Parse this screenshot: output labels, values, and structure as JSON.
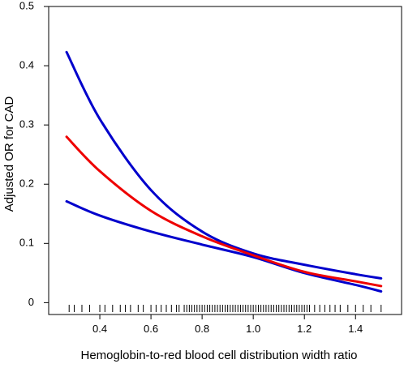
{
  "chart_data": {
    "type": "line",
    "xlabel": "Hemoglobin-to-red blood cell distribution width ratio",
    "ylabel": "Adjusted OR for CAD",
    "xlim": [
      0.2,
      1.58
    ],
    "ylim": [
      -0.02,
      0.5
    ],
    "x_ticks": [
      0.4,
      0.6,
      0.8,
      1.0,
      1.2,
      1.4
    ],
    "x_tick_labels": [
      "0.4",
      "0.6",
      "0.8",
      "1.0",
      "1.2",
      "1.4"
    ],
    "y_ticks": [
      0,
      0.1,
      0.2,
      0.3,
      0.4,
      0.5
    ],
    "y_tick_labels": [
      "0",
      "0.1",
      "0.2",
      "0.3",
      "0.4",
      "0.5"
    ],
    "grid": false,
    "colors": {
      "estimate": "#ee0000",
      "ci": "#0000cc",
      "axis": "#000000"
    },
    "series": [
      {
        "role": "estimate",
        "x": [
          0.27,
          0.4,
          0.6,
          0.8,
          1.0,
          1.2,
          1.4,
          1.5
        ],
        "y": [
          0.28,
          0.222,
          0.155,
          0.112,
          0.08,
          0.052,
          0.036,
          0.028
        ]
      },
      {
        "role": "ci_upper",
        "x": [
          0.27,
          0.4,
          0.6,
          0.8,
          1.0,
          1.2,
          1.4,
          1.5
        ],
        "y": [
          0.423,
          0.31,
          0.19,
          0.12,
          0.083,
          0.064,
          0.048,
          0.041
        ]
      },
      {
        "role": "ci_lower",
        "x": [
          0.27,
          0.4,
          0.6,
          0.8,
          1.0,
          1.2,
          1.4,
          1.5
        ],
        "y": [
          0.171,
          0.147,
          0.12,
          0.098,
          0.077,
          0.05,
          0.03,
          0.019
        ]
      }
    ],
    "rug": [
      0.28,
      0.3,
      0.33,
      0.36,
      0.4,
      0.42,
      0.45,
      0.48,
      0.5,
      0.52,
      0.55,
      0.57,
      0.6,
      0.62,
      0.64,
      0.66,
      0.68,
      0.7,
      0.71,
      0.73,
      0.74,
      0.75,
      0.76,
      0.77,
      0.78,
      0.79,
      0.8,
      0.81,
      0.82,
      0.83,
      0.84,
      0.85,
      0.86,
      0.87,
      0.88,
      0.89,
      0.9,
      0.91,
      0.92,
      0.93,
      0.94,
      0.95,
      0.96,
      0.97,
      0.98,
      0.99,
      1.0,
      1.01,
      1.02,
      1.03,
      1.04,
      1.05,
      1.06,
      1.07,
      1.08,
      1.09,
      1.1,
      1.11,
      1.12,
      1.13,
      1.14,
      1.15,
      1.16,
      1.17,
      1.18,
      1.19,
      1.2,
      1.21,
      1.22,
      1.24,
      1.26,
      1.28,
      1.3,
      1.32,
      1.34,
      1.37,
      1.4,
      1.43,
      1.46,
      1.5
    ]
  }
}
